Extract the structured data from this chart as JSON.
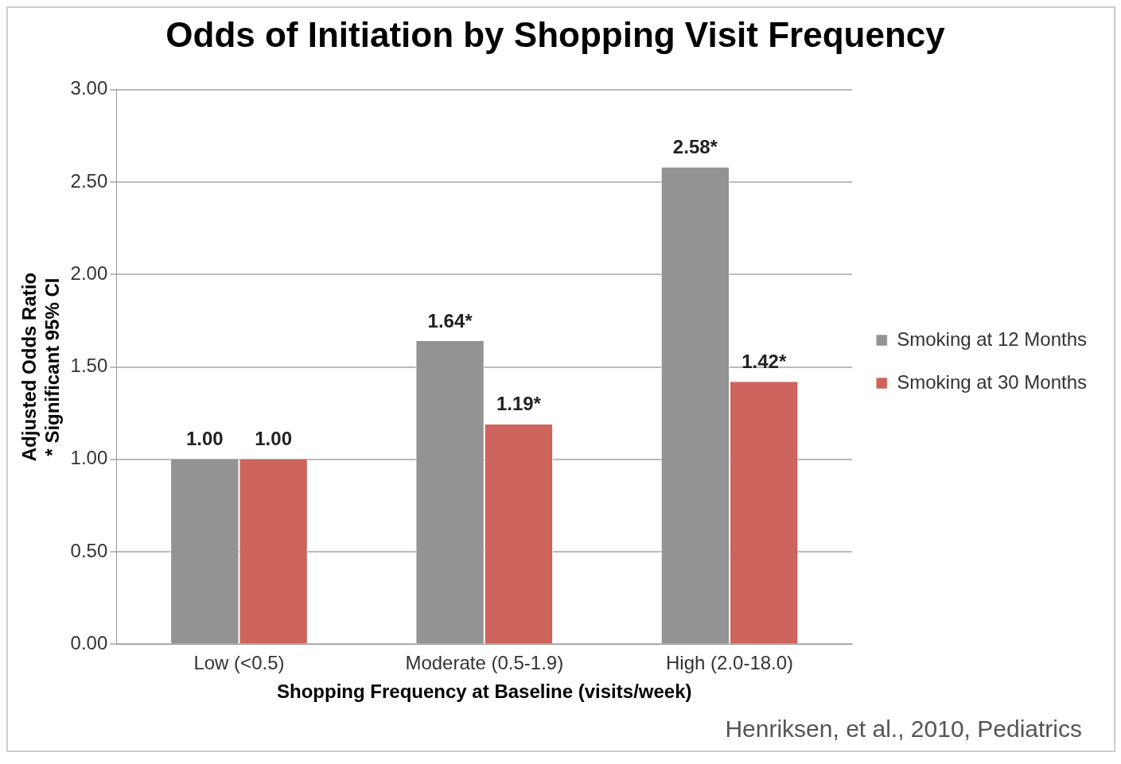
{
  "chart_data": {
    "type": "bar",
    "title": "Odds of Initiation by Shopping Visit Frequency",
    "xlabel": "Shopping Frequency at Baseline (visits/week)",
    "ylabel": "Adjusted Odds Ratio\n* Significant 95% CI",
    "categories": [
      "Low (<0.5)",
      "Moderate (0.5-1.9)",
      "High (2.0-18.0)"
    ],
    "series": [
      {
        "name": "Smoking at 12 Months",
        "color": "#939393",
        "values": [
          1.0,
          1.64,
          2.58
        ],
        "value_labels": [
          "1.00",
          "1.64*",
          "2.58*"
        ]
      },
      {
        "name": "Smoking at 30 Months",
        "color": "#cd655c",
        "values": [
          1.0,
          1.19,
          1.42
        ],
        "value_labels": [
          "1.00",
          "1.19*",
          "1.42*"
        ]
      }
    ],
    "ylim": [
      0,
      3
    ],
    "yticks": [
      {
        "value": 0,
        "label": "0.00"
      },
      {
        "value": 0.5,
        "label": "0.50"
      },
      {
        "value": 1,
        "label": "1.00"
      },
      {
        "value": 1.5,
        "label": "1.50"
      },
      {
        "value": 2,
        "label": "2.00"
      },
      {
        "value": 2.5,
        "label": "2.50"
      },
      {
        "value": 3,
        "label": "3.00"
      }
    ],
    "grid": "y",
    "legend": "right",
    "annotations": [
      "Henriksen, et al., 2010, Pediatrics"
    ]
  }
}
